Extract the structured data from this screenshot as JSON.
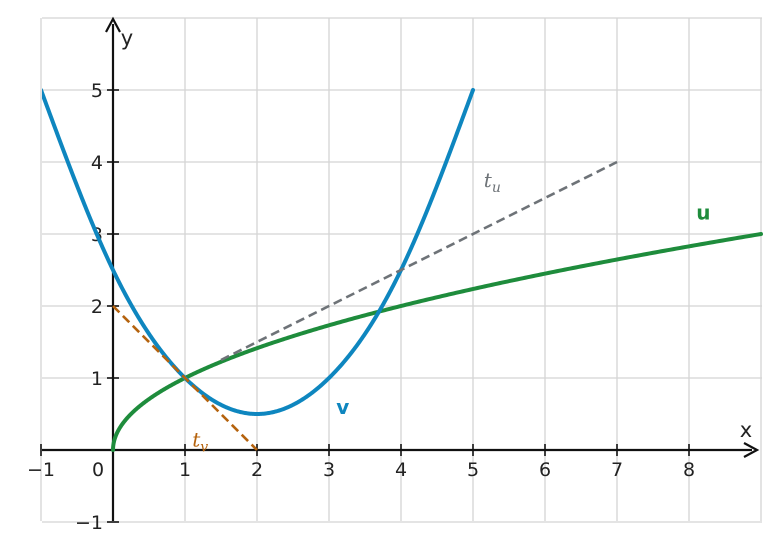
{
  "chart_data": {
    "type": "line",
    "title": "",
    "xlabel": "x",
    "ylabel": "y",
    "xlim": [
      -1,
      9
    ],
    "ylim": [
      -1,
      6
    ],
    "grid": true,
    "x_ticks": [
      -1,
      0,
      1,
      2,
      3,
      4,
      5,
      6,
      7,
      8
    ],
    "x_tick_labels": [
      "−1",
      "0",
      "1",
      "2",
      "3",
      "4",
      "5",
      "6",
      "7",
      "8"
    ],
    "y_ticks": [
      -1,
      1,
      2,
      3,
      4,
      5
    ],
    "y_tick_labels": [
      "−1",
      "1",
      "2",
      "3",
      "4",
      "5"
    ],
    "series": [
      {
        "name": "u",
        "label_main": "u",
        "label_sub": "",
        "label_style": "bold",
        "color": "#1e8c3c",
        "dash": false,
        "x_range": [
          0,
          9
        ],
        "x": [
          0,
          0.25,
          1,
          2,
          3,
          4,
          5,
          6,
          7,
          8,
          9
        ],
        "y": [
          0,
          0.5,
          1,
          1.414,
          1.732,
          2,
          2.236,
          2.449,
          2.646,
          2.828,
          3
        ],
        "label_at": [
          8.1,
          3.2
        ]
      },
      {
        "name": "v",
        "label_main": "v",
        "label_sub": "",
        "label_style": "bold",
        "color": "#0e86bf",
        "dash": false,
        "x_range": [
          -1,
          5
        ],
        "x": [
          -1,
          0,
          1,
          2,
          3,
          4,
          5
        ],
        "y": [
          5,
          2.5,
          1,
          0.5,
          1,
          2.5,
          5
        ],
        "label_at": [
          3.1,
          0.5
        ]
      },
      {
        "name": "t_u",
        "label_main": "t",
        "label_sub": "u",
        "label_style": "italic",
        "color": "#6e7378",
        "dash": true,
        "x_range": [
          1.5,
          7
        ],
        "x": [
          1.5,
          7
        ],
        "y": [
          1.25,
          4
        ],
        "label_at": [
          5.15,
          3.65
        ]
      },
      {
        "name": "t_v",
        "label_main": "t",
        "label_sub": "v",
        "label_style": "italic",
        "color": "#b5630e",
        "dash": true,
        "x_range": [
          0,
          2
        ],
        "x": [
          0,
          1,
          2
        ],
        "y": [
          2,
          1,
          0
        ],
        "label_at": [
          1.1,
          0.05
        ]
      }
    ]
  }
}
